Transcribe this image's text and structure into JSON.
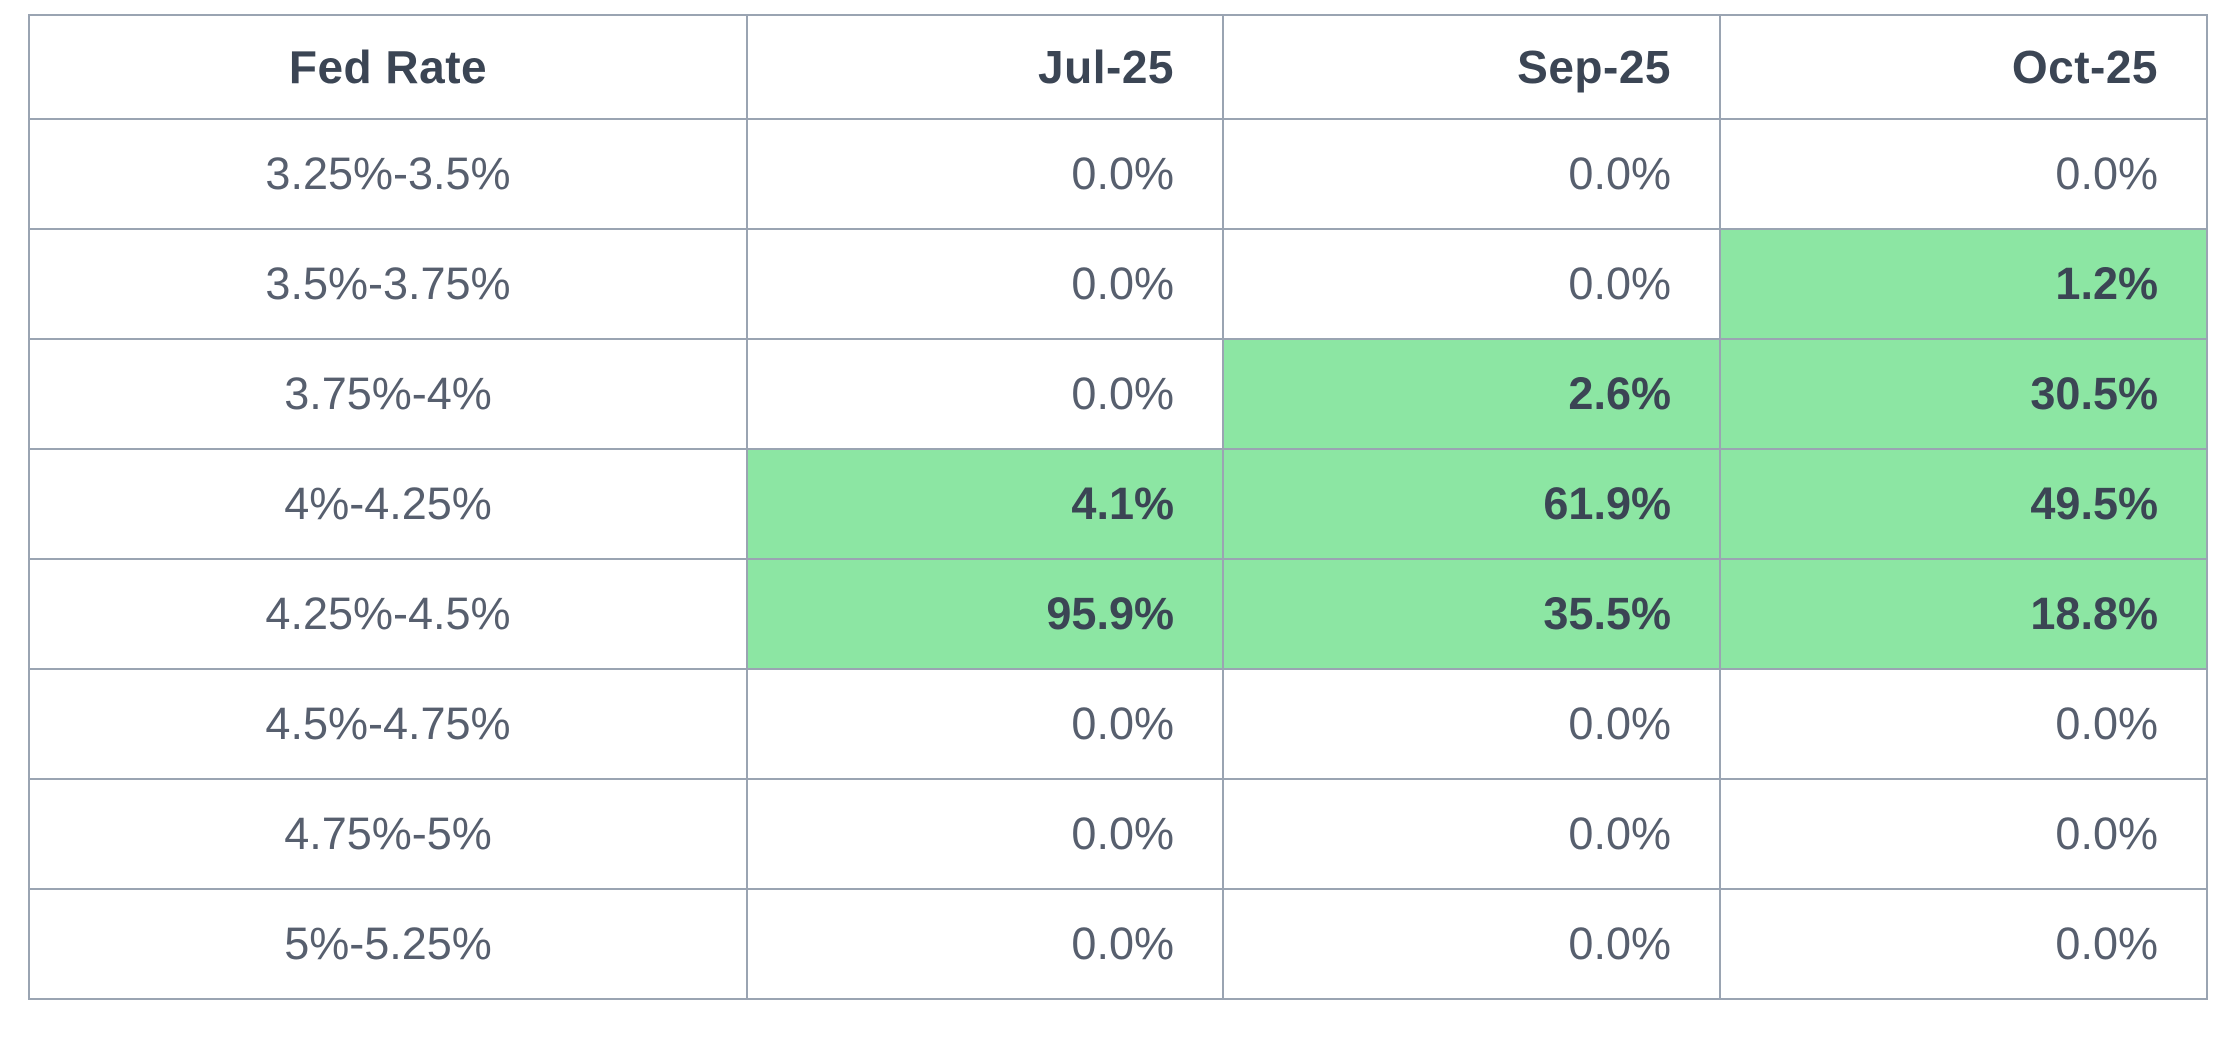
{
  "table": {
    "header": {
      "col0": "Fed Rate",
      "col1": "Jul-25",
      "col2": "Sep-25",
      "col3": "Oct-25"
    },
    "rows": [
      {
        "label": "3.25%-3.5%",
        "values": [
          "0.0%",
          "0.0%",
          "0.0%"
        ],
        "highlight": [
          false,
          false,
          false
        ]
      },
      {
        "label": "3.5%-3.75%",
        "values": [
          "0.0%",
          "0.0%",
          "1.2%"
        ],
        "highlight": [
          false,
          false,
          true
        ]
      },
      {
        "label": "3.75%-4%",
        "values": [
          "0.0%",
          "2.6%",
          "30.5%"
        ],
        "highlight": [
          false,
          true,
          true
        ]
      },
      {
        "label": "4%-4.25%",
        "values": [
          "4.1%",
          "61.9%",
          "49.5%"
        ],
        "highlight": [
          true,
          true,
          true
        ]
      },
      {
        "label": "4.25%-4.5%",
        "values": [
          "95.9%",
          "35.5%",
          "18.8%"
        ],
        "highlight": [
          true,
          true,
          true
        ]
      },
      {
        "label": "4.5%-4.75%",
        "values": [
          "0.0%",
          "0.0%",
          "0.0%"
        ],
        "highlight": [
          false,
          false,
          false
        ]
      },
      {
        "label": "4.75%-5%",
        "values": [
          "0.0%",
          "0.0%",
          "0.0%"
        ],
        "highlight": [
          false,
          false,
          false
        ]
      },
      {
        "label": "5%-5.25%",
        "values": [
          "0.0%",
          "0.0%",
          "0.0%"
        ],
        "highlight": [
          false,
          false,
          false
        ]
      }
    ]
  },
  "colors": {
    "highlight_green": "#8ce6a3",
    "border": "#9aa4b2",
    "header_text": "#3b4554",
    "cell_text": "#575f6e",
    "background": "#ffffff"
  },
  "chart_data": {
    "type": "table",
    "columns": [
      "Fed Rate",
      "Jul-25",
      "Sep-25",
      "Oct-25"
    ],
    "row_categories": [
      "3.25%-3.5%",
      "3.5%-3.75%",
      "3.75%-4%",
      "4%-4.25%",
      "4.25%-4.5%",
      "4.5%-4.75%",
      "4.75%-5%",
      "5%-5.25%"
    ],
    "series": [
      {
        "name": "Jul-25",
        "values": [
          0.0,
          0.0,
          0.0,
          4.1,
          95.9,
          0.0,
          0.0,
          0.0
        ]
      },
      {
        "name": "Sep-25",
        "values": [
          0.0,
          0.0,
          2.6,
          61.9,
          35.5,
          0.0,
          0.0,
          0.0
        ]
      },
      {
        "name": "Oct-25",
        "values": [
          0.0,
          1.2,
          30.5,
          49.5,
          18.8,
          0.0,
          0.0,
          0.0
        ]
      }
    ],
    "values_unit": "percent",
    "highlighted_cells_note": "nonzero probabilities shown bold on green background",
    "highlight_color": "#8ce6a3"
  }
}
